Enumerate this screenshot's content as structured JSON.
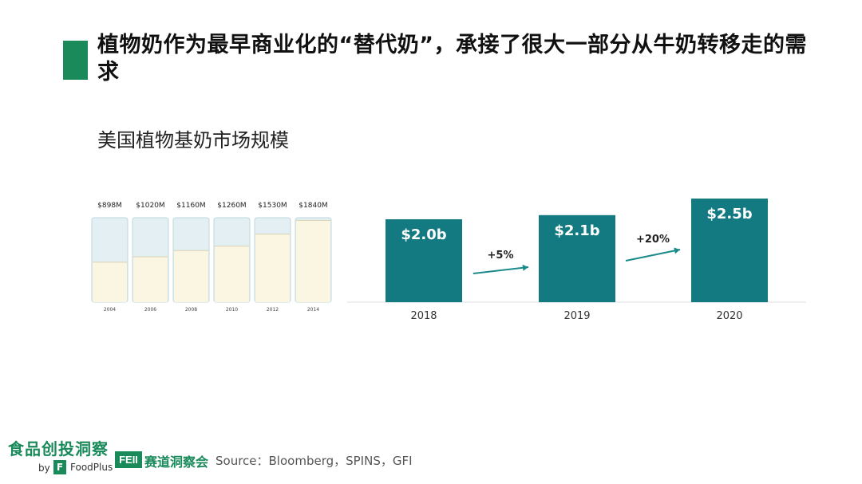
{
  "page": {
    "title": "植物奶作为最早商业化的“替代奶”，承接了很大一部分从牛奶转移走的需求",
    "subtitle": "美国植物基奶市场规模",
    "source": "Source：Bloomberg，SPINS，GFI"
  },
  "footer": {
    "logo_main": "食品创投洞察",
    "logo_by": "by",
    "logo_icon_letter": "F",
    "logo_foodplus": "FoodPlus",
    "feii_badge": "FEII",
    "feii_text": "赛道洞察会"
  },
  "colors": {
    "accent_green": "#1a8a5a",
    "bar_teal": "#137a82",
    "arrow_teal": "#1a8a8a",
    "milk": "#fbf6e2",
    "glass_edge": "#bcd9df"
  },
  "chart_data": [
    {
      "type": "bar",
      "style": "glass-fill",
      "categories": [
        "2004",
        "2006",
        "2008",
        "2010",
        "2012",
        "2014"
      ],
      "values": [
        898,
        1020,
        1160,
        1260,
        1530,
        1840
      ],
      "value_labels": [
        "$898M",
        "$1020M",
        "$1160M",
        "$1260M",
        "$1530M",
        "$1840M"
      ],
      "unit": "USD million",
      "ylim": [
        0,
        1900
      ]
    },
    {
      "type": "bar",
      "categories": [
        "2018",
        "2019",
        "2020"
      ],
      "values": [
        2.0,
        2.1,
        2.5
      ],
      "value_labels": [
        "$2.0b",
        "$2.1b",
        "$2.5b"
      ],
      "growth_labels": [
        "+5%",
        "+20%"
      ],
      "unit": "USD billion",
      "ylim": [
        0,
        2.5
      ]
    }
  ]
}
